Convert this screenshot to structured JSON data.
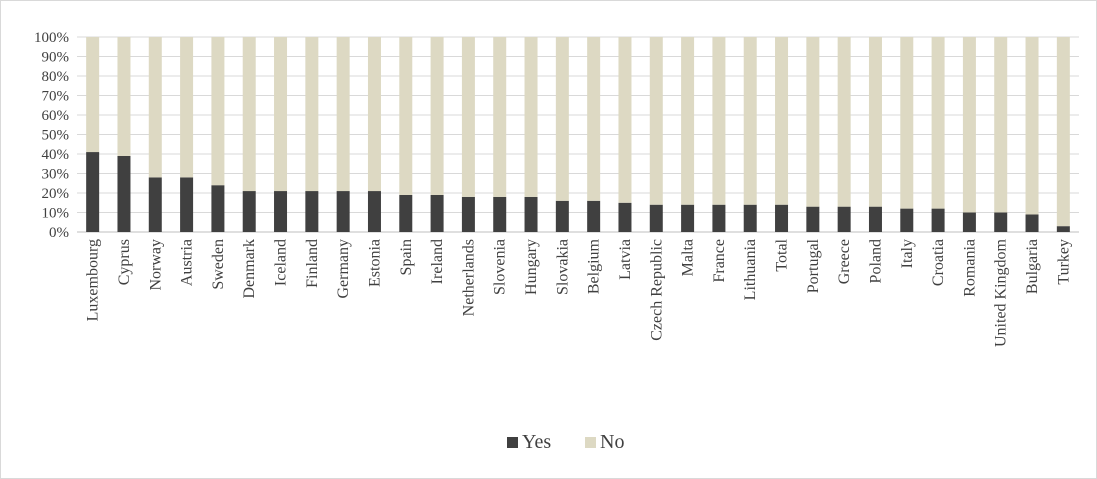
{
  "chart_data": {
    "type": "bar",
    "stacked": true,
    "percent_stacked": true,
    "categories": [
      "Luxembourg",
      "Cyprus",
      "Norway",
      "Austria",
      "Sweden",
      "Denmark",
      "Iceland",
      "Finland",
      "Germany",
      "Estonia",
      "Spain",
      "Ireland",
      "Netherlands",
      "Slovenia",
      "Hungary",
      "Slovakia",
      "Belgium",
      "Latvia",
      "Czech Republic",
      "Malta",
      "France",
      "Lithuania",
      "Total",
      "Portugal",
      "Greece",
      "Poland",
      "Italy",
      "Croatia",
      "Romania",
      "United Kingdom",
      "Bulgaria",
      "Turkey"
    ],
    "series": [
      {
        "name": "Yes",
        "color": "#404040",
        "values": [
          41,
          39,
          28,
          28,
          24,
          21,
          21,
          21,
          21,
          21,
          19,
          19,
          18,
          18,
          18,
          16,
          16,
          15,
          14,
          14,
          14,
          14,
          14,
          13,
          13,
          13,
          12,
          12,
          10,
          10,
          9,
          3
        ]
      },
      {
        "name": "No",
        "color": "#ddd9c3",
        "values": [
          59,
          61,
          72,
          72,
          76,
          79,
          79,
          79,
          79,
          79,
          81,
          81,
          82,
          82,
          82,
          84,
          84,
          85,
          86,
          86,
          86,
          86,
          86,
          87,
          87,
          87,
          88,
          88,
          90,
          90,
          91,
          97
        ]
      }
    ],
    "yticks": [
      "0%",
      "10%",
      "20%",
      "30%",
      "40%",
      "50%",
      "60%",
      "70%",
      "80%",
      "90%",
      "100%"
    ],
    "ylim": [
      0,
      100
    ],
    "title": "",
    "xlabel": "",
    "ylabel": "",
    "grid": true,
    "legend": "bottom"
  }
}
